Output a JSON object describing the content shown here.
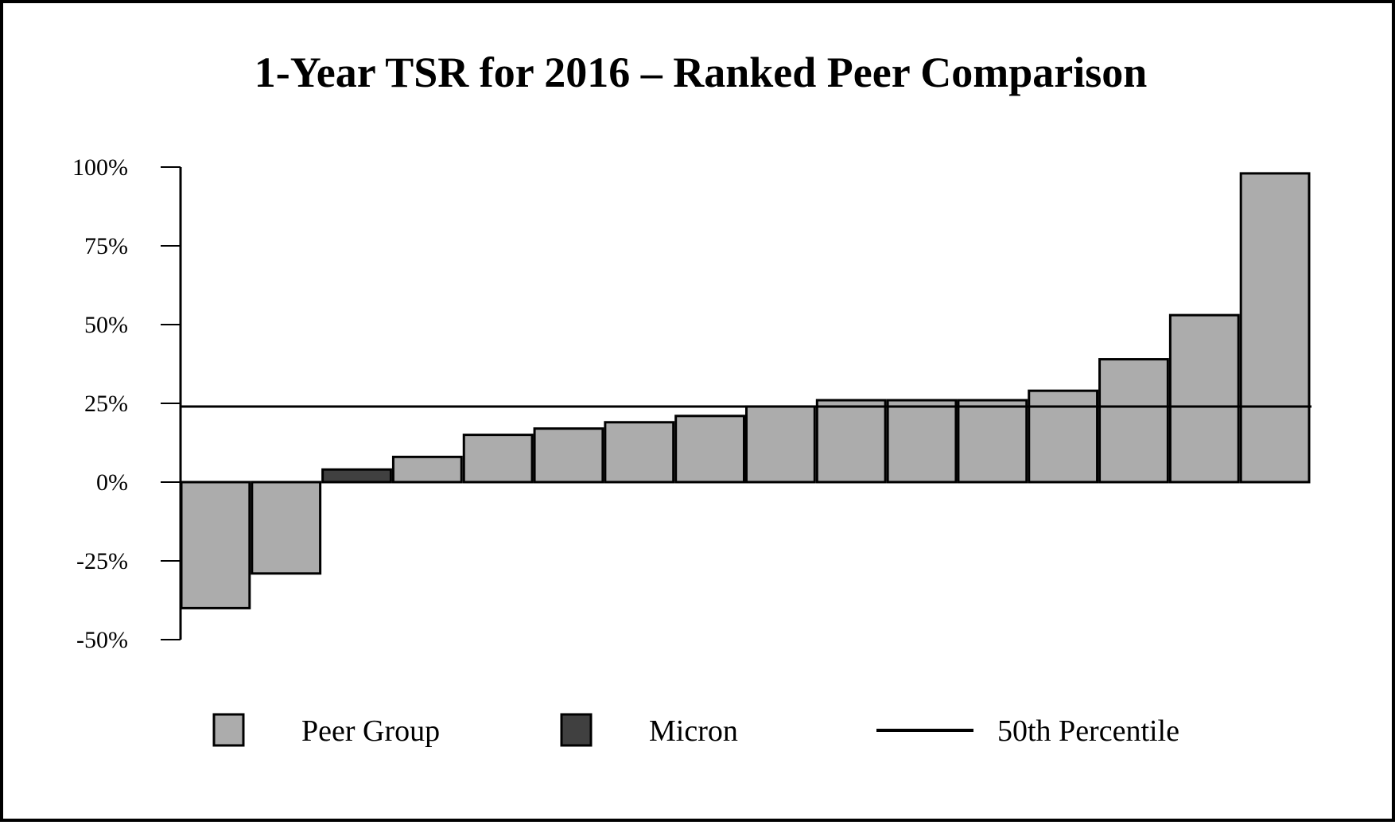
{
  "chart_data": {
    "type": "bar",
    "title": "1-Year TSR for 2016 – Ranked Peer Comparison",
    "xlabel": "",
    "ylabel": "",
    "ylim": [
      -50,
      100
    ],
    "yticks": [
      100,
      75,
      50,
      25,
      0,
      -25,
      -50
    ],
    "ytick_labels": [
      "100%",
      "75%",
      "50%",
      "25%",
      "0%",
      "-25%",
      "-50%"
    ],
    "grid": false,
    "legend_position": "bottom",
    "series": [
      {
        "name": "Peer Group",
        "color": "#acacac",
        "values": [
          -40,
          -29,
          null,
          8,
          15,
          17,
          19,
          21,
          24,
          26,
          26,
          26,
          29,
          39,
          53,
          98
        ]
      },
      {
        "name": "Micron",
        "color": "#404040",
        "values": [
          null,
          null,
          4,
          null,
          null,
          null,
          null,
          null,
          null,
          null,
          null,
          null,
          null,
          null,
          null,
          null
        ]
      }
    ],
    "reference_line": {
      "name": "50th Percentile",
      "value": 24,
      "color": "#000000"
    },
    "legend": [
      {
        "label": "Peer Group",
        "kind": "swatch",
        "color": "#acacac"
      },
      {
        "label": "Micron",
        "kind": "swatch",
        "color": "#404040"
      },
      {
        "label": "50th Percentile",
        "kind": "line",
        "color": "#000000"
      }
    ]
  }
}
